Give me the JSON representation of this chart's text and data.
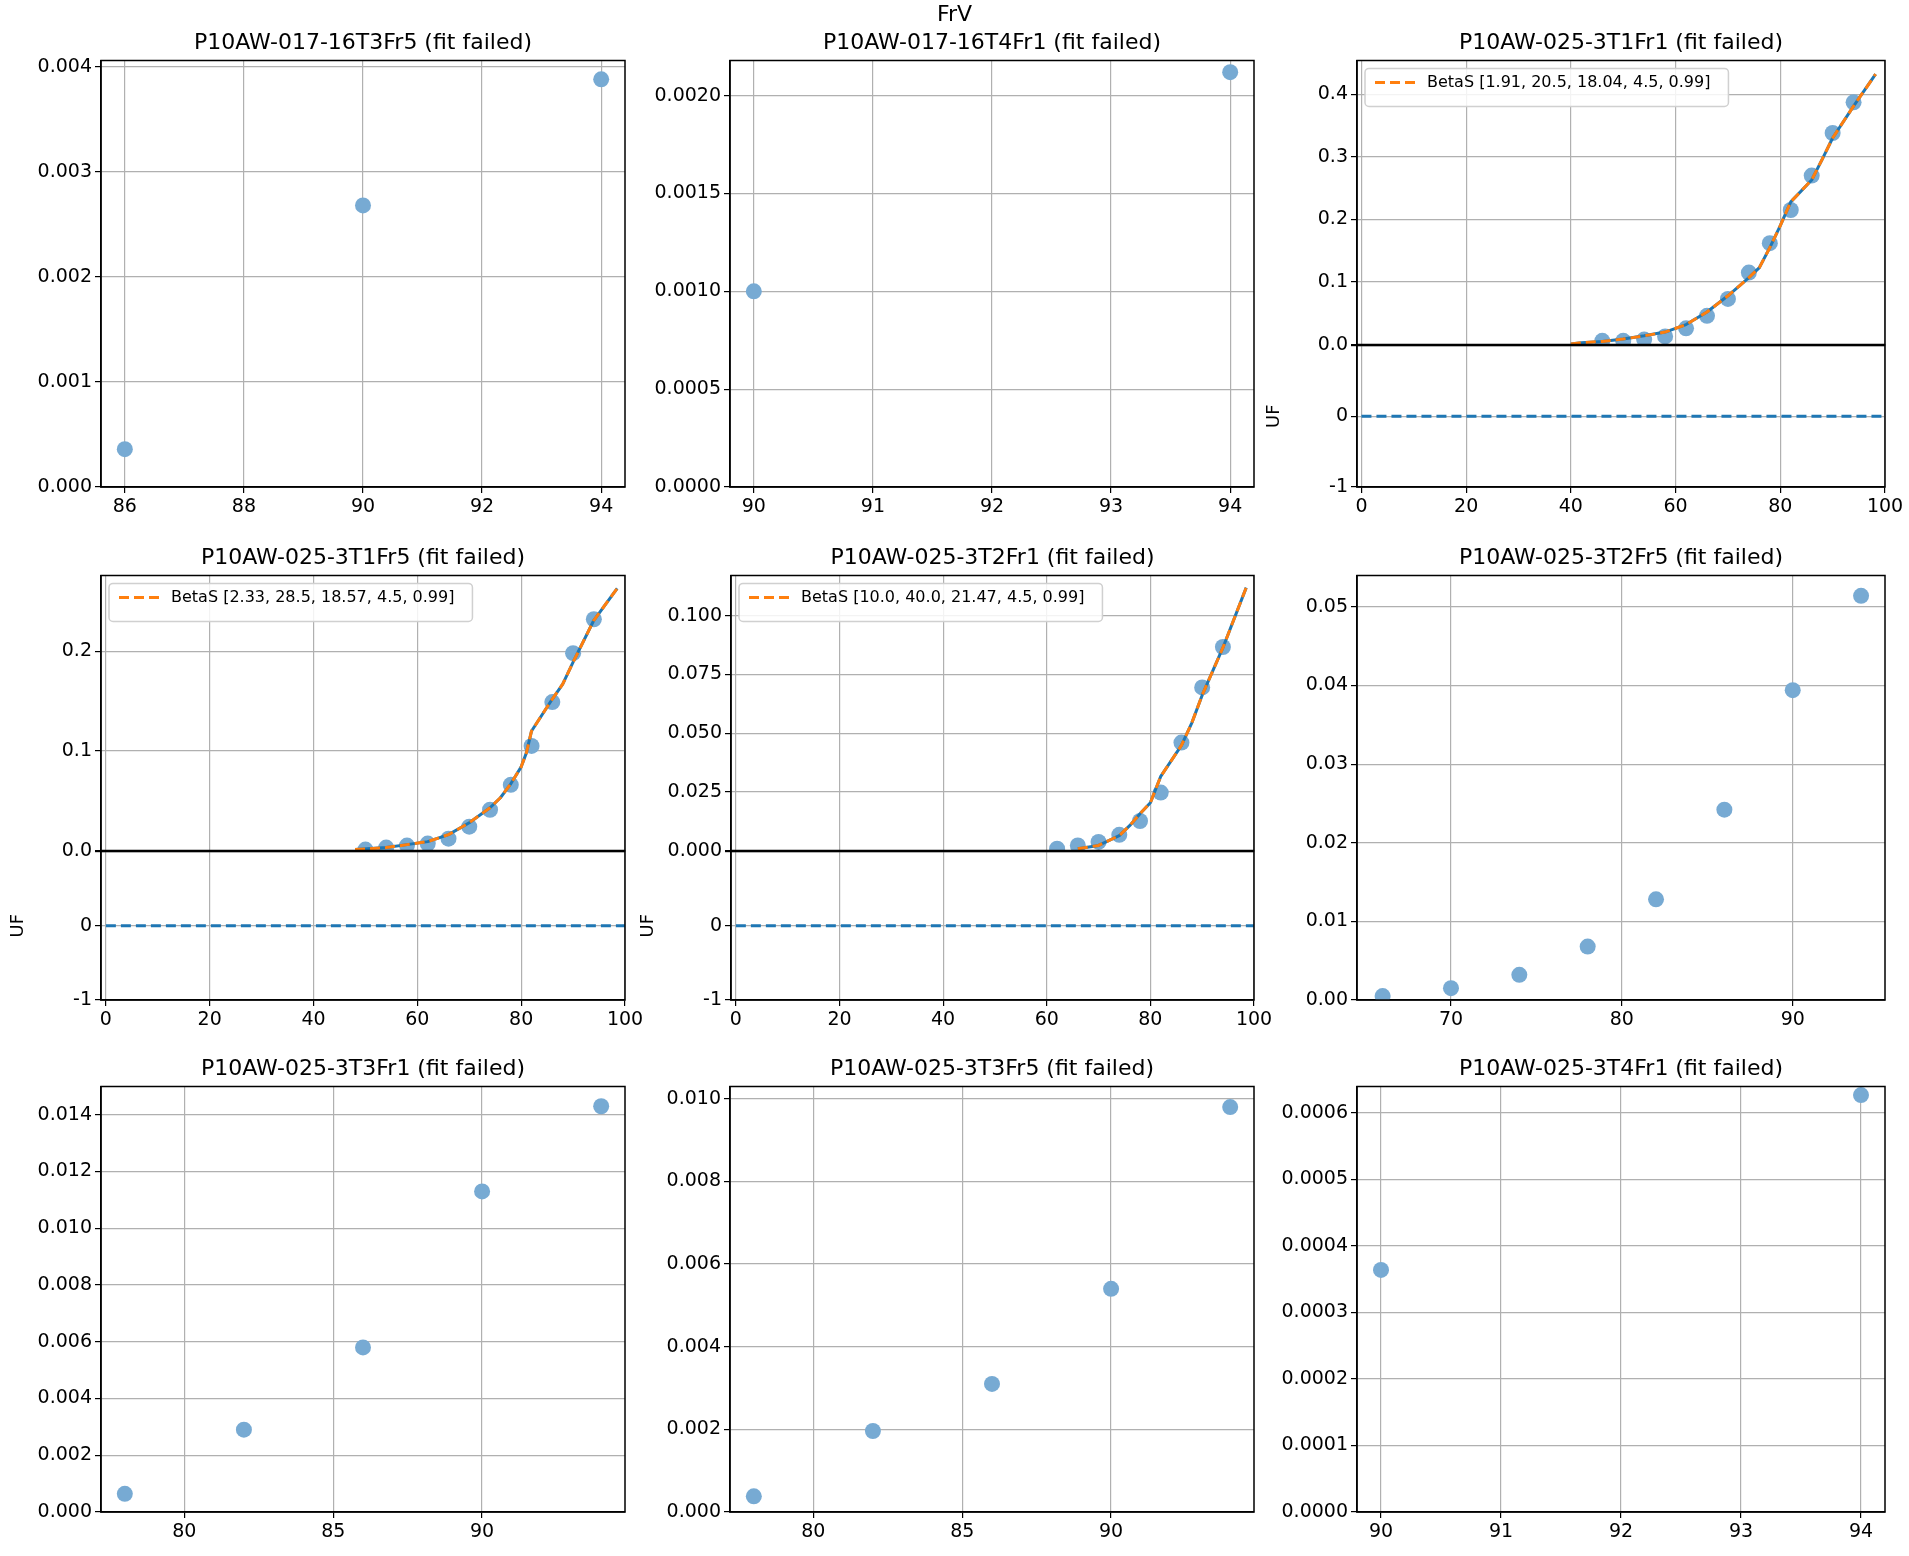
{
  "chart_data": [
    {
      "type": "other",
      "title": "FrV"
    },
    {
      "type": "scatter",
      "title": "P10AW-017-16T3Fr5 (fit failed)",
      "xlim": [
        85.6,
        94.4
      ],
      "xticks": [
        86,
        88,
        90,
        92,
        94
      ],
      "ylim": [
        0,
        0.00406
      ],
      "yticks": [
        {
          "value": 0,
          "label": "0.000"
        },
        0.001,
        0.002,
        0.003,
        0.004
      ],
      "grid": true,
      "series": [
        {
          "type": "scatter",
          "color": "#77aad3",
          "marker": "circle",
          "x": [
            86,
            90,
            94
          ],
          "values": [
            0.00036,
            0.00268,
            0.00388
          ]
        }
      ]
    },
    {
      "type": "scatter",
      "title": "P10AW-017-16T4Fr1 (fit failed)",
      "xlim": [
        89.8,
        94.2
      ],
      "xticks": [
        90,
        91,
        92,
        93,
        94
      ],
      "ylim": [
        0,
        0.00218
      ],
      "yticks": [
        {
          "value": 0,
          "label": "0.0000"
        },
        {
          "value": 0.0005,
          "label": "0.0005"
        },
        {
          "value": 0.001,
          "label": "0.0010"
        },
        {
          "value": 0.0015,
          "label": "0.0015"
        },
        {
          "value": 0.002,
          "label": "0.0020"
        }
      ],
      "grid": true,
      "series": [
        {
          "type": "scatter",
          "color": "#77aad3",
          "marker": "circle",
          "x": [
            90,
            94
          ],
          "values": [
            0.001,
            0.00212
          ]
        }
      ]
    },
    {
      "type": "scatter",
      "title": "P10AW-025-3T1Fr1 (fit failed)",
      "xlim": [
        -0.85,
        100
      ],
      "xticks": [
        0,
        20,
        40,
        60,
        80,
        100
      ],
      "ylim": [
        0,
        0.454
      ],
      "yticks": [
        {
          "value": 0,
          "label": "0.0"
        },
        0.1,
        0.2,
        0.3,
        0.4
      ],
      "grid": true,
      "tick_labels": "y",
      "legend": "top left",
      "series": [
        {
          "type": "scatter",
          "color": "#77aad3",
          "marker": "circle",
          "x": [
            46,
            50,
            54,
            58,
            62,
            66,
            70,
            74,
            78,
            82,
            86,
            90,
            94
          ],
          "values": [
            0.006,
            0.006,
            0.008,
            0.013,
            0.026,
            0.046,
            0.073,
            0.115,
            0.162,
            0.215,
            0.27,
            0.338,
            0.387
          ]
        },
        {
          "type": "line",
          "color": "#1f77b4",
          "line_style": "solid",
          "x": [
            40,
            42,
            46,
            50,
            54,
            58,
            62,
            66,
            70,
            74,
            76,
            78,
            80,
            82,
            86,
            88,
            90,
            94,
            98.2
          ],
          "values": [
            0.001,
            0.003,
            0.005,
            0.009,
            0.014,
            0.02,
            0.032,
            0.052,
            0.078,
            0.107,
            0.123,
            0.155,
            0.19,
            0.228,
            0.263,
            0.296,
            0.33,
            0.381,
            0.432
          ]
        },
        {
          "type": "line",
          "name": "BetaS [1.91, 20.5, 18.04, 4.5, 0.99]",
          "color": "#ff7f0e",
          "line_style": "dashed",
          "x": [
            40,
            42,
            46,
            50,
            54,
            58,
            62,
            66,
            70,
            74,
            76,
            78,
            80,
            82,
            86,
            88,
            90,
            94,
            98.2
          ],
          "values": [
            0.001,
            0.003,
            0.005,
            0.009,
            0.014,
            0.02,
            0.032,
            0.052,
            0.078,
            0.107,
            0.123,
            0.155,
            0.19,
            0.228,
            0.263,
            0.296,
            0.33,
            0.381,
            0.432
          ]
        }
      ]
    },
    {
      "type": "line",
      "xlim": [
        -0.85,
        100
      ],
      "xticks": [
        0,
        20,
        40,
        60,
        80,
        100
      ],
      "ylim": [
        -1,
        1
      ],
      "yticks": [
        -1,
        0,
        {
          "value": 1,
          "label": null
        }
      ],
      "ylabel": "UF",
      "grid": true,
      "series": [
        {
          "type": "line",
          "color": "#1f77b4",
          "line_style": "dashed",
          "x": [
            0,
            100
          ],
          "values": [
            0,
            0
          ]
        }
      ]
    },
    {
      "type": "scatter",
      "title": "P10AW-025-3T1Fr5 (fit failed)",
      "xlim": [
        -0.94,
        100
      ],
      "xticks": [
        0,
        20,
        40,
        60,
        80,
        100
      ],
      "ylim": [
        0,
        0.276
      ],
      "yticks": [
        {
          "value": 0,
          "label": "0.0"
        },
        0.1,
        0.2
      ],
      "grid": true,
      "tick_labels": "y",
      "legend": "top left",
      "series": [
        {
          "type": "scatter",
          "color": "#77aad3",
          "marker": "circle",
          "x": [
            50,
            54,
            58,
            62,
            66,
            70,
            74,
            78,
            82,
            86,
            90,
            94
          ],
          "values": [
            0.001,
            0.003,
            0.005,
            0.007,
            0.012,
            0.024,
            0.041,
            0.066,
            0.105,
            0.149,
            0.198,
            0.232
          ]
        },
        {
          "type": "line",
          "color": "#1f77b4",
          "line_style": "solid",
          "x": [
            48,
            54,
            58,
            62,
            66,
            70,
            74,
            76,
            78,
            80,
            81,
            82,
            86,
            88,
            90,
            94,
            98.5
          ],
          "values": [
            0.001,
            0.003,
            0.006,
            0.009,
            0.016,
            0.028,
            0.043,
            0.053,
            0.067,
            0.084,
            0.098,
            0.12,
            0.152,
            0.167,
            0.189,
            0.231,
            0.263
          ]
        },
        {
          "type": "line",
          "name": "BetaS [2.33, 28.5, 18.57, 4.5, 0.99]",
          "color": "#ff7f0e",
          "line_style": "dashed",
          "x": [
            48,
            54,
            58,
            62,
            66,
            70,
            74,
            76,
            78,
            80,
            81,
            82,
            86,
            88,
            90,
            94,
            98.5
          ],
          "values": [
            0.001,
            0.003,
            0.006,
            0.009,
            0.016,
            0.028,
            0.043,
            0.053,
            0.067,
            0.084,
            0.098,
            0.12,
            0.152,
            0.167,
            0.189,
            0.231,
            0.263
          ]
        }
      ]
    },
    {
      "type": "line",
      "xlim": [
        -0.94,
        100
      ],
      "xticks": [
        0,
        20,
        40,
        60,
        80,
        100
      ],
      "ylim": [
        -1,
        1
      ],
      "yticks": [
        -1,
        0,
        {
          "value": 1,
          "label": null
        }
      ],
      "ylabel": "UF",
      "grid": true,
      "series": [
        {
          "type": "line",
          "color": "#1f77b4",
          "line_style": "dashed",
          "x": [
            0,
            100
          ],
          "values": [
            0,
            0
          ]
        }
      ]
    },
    {
      "type": "scatter",
      "title": "P10AW-025-3T2Fr1 (fit failed)",
      "xlim": [
        -0.94,
        100
      ],
      "xticks": [
        0,
        20,
        40,
        60,
        80,
        100
      ],
      "ylim": [
        0,
        0.1172
      ],
      "yticks": [
        {
          "value": 0,
          "label": "0.000"
        },
        {
          "value": 0.025,
          "label": "0.025"
        },
        {
          "value": 0.05,
          "label": "0.050"
        },
        {
          "value": 0.075,
          "label": "0.075"
        },
        {
          "value": 0.1,
          "label": "0.100"
        }
      ],
      "grid": true,
      "tick_labels": "y",
      "legend": "top left",
      "series": [
        {
          "type": "scatter",
          "color": "#77aad3",
          "marker": "circle",
          "x": [
            62,
            66,
            70,
            74,
            78,
            82,
            86,
            90,
            94
          ],
          "values": [
            0.0008,
            0.0022,
            0.0037,
            0.0067,
            0.0126,
            0.0247,
            0.046,
            0.0695,
            0.0867
          ]
        },
        {
          "type": "line",
          "color": "#1f77b4",
          "line_style": "solid",
          "x": [
            66,
            70,
            74,
            76,
            78,
            80,
            82,
            86,
            88,
            90,
            94,
            98.5
          ],
          "values": [
            0.0008,
            0.0022,
            0.0064,
            0.0106,
            0.0157,
            0.0204,
            0.0316,
            0.0448,
            0.0544,
            0.0662,
            0.0864,
            0.112
          ]
        },
        {
          "type": "line",
          "name": "BetaS [10.0, 40.0, 21.47, 4.5, 0.99]",
          "color": "#ff7f0e",
          "line_style": "dashed",
          "x": [
            66,
            70,
            74,
            76,
            78,
            80,
            82,
            86,
            88,
            90,
            94,
            98.5
          ],
          "values": [
            0.0008,
            0.0022,
            0.0064,
            0.0106,
            0.0157,
            0.0204,
            0.0316,
            0.0448,
            0.0544,
            0.0662,
            0.0864,
            0.112
          ]
        }
      ]
    },
    {
      "type": "line",
      "xlim": [
        -0.94,
        100
      ],
      "xticks": [
        0,
        20,
        40,
        60,
        80,
        100
      ],
      "ylim": [
        -1,
        1
      ],
      "yticks": [
        -1,
        0,
        {
          "value": 1,
          "label": null
        }
      ],
      "ylabel": "UF",
      "grid": true,
      "series": [
        {
          "type": "line",
          "color": "#1f77b4",
          "line_style": "dashed",
          "x": [
            0,
            100
          ],
          "values": [
            0,
            0
          ]
        }
      ]
    },
    {
      "type": "scatter",
      "title": "P10AW-025-3T2Fr5 (fit failed)",
      "xlim": [
        64.5,
        95.4
      ],
      "xticks": [
        70,
        80,
        90
      ],
      "ylim": [
        0,
        0.054
      ],
      "yticks": [
        {
          "value": 0,
          "label": "0.00"
        },
        0.01,
        0.02,
        0.03,
        0.04,
        0.05
      ],
      "grid": true,
      "series": [
        {
          "type": "scatter",
          "color": "#77aad3",
          "marker": "circle",
          "x": [
            66,
            70,
            74,
            78,
            82,
            86,
            90,
            94
          ],
          "values": [
            0.0005,
            0.0015,
            0.0032,
            0.0068,
            0.0128,
            0.0242,
            0.0394,
            0.0514
          ]
        }
      ]
    },
    {
      "type": "scatter",
      "title": "P10AW-025-3T3Fr1 (fit failed)",
      "xlim": [
        77.2,
        94.8
      ],
      "xticks": [
        80,
        85,
        90
      ],
      "ylim": [
        0,
        0.015
      ],
      "yticks": [
        {
          "value": 0,
          "label": "0.000"
        },
        0.002,
        0.004,
        0.006,
        0.008,
        {
          "value": 0.01,
          "label": "0.010"
        },
        0.012,
        0.014
      ],
      "grid": true,
      "series": [
        {
          "type": "scatter",
          "color": "#77aad3",
          "marker": "circle",
          "x": [
            78,
            82,
            86,
            90,
            94
          ],
          "values": [
            0.00064,
            0.0029,
            0.0058,
            0.0113,
            0.0143
          ]
        }
      ]
    },
    {
      "type": "scatter",
      "title": "P10AW-025-3T3Fr5 (fit failed)",
      "xlim": [
        77.2,
        94.8
      ],
      "xticks": [
        80,
        85,
        90
      ],
      "ylim": [
        0,
        0.0103
      ],
      "yticks": [
        {
          "value": 0,
          "label": "0.000"
        },
        0.002,
        0.004,
        0.006,
        0.008,
        {
          "value": 0.01,
          "label": "0.010"
        }
      ],
      "grid": true,
      "series": [
        {
          "type": "scatter",
          "color": "#77aad3",
          "marker": "circle",
          "x": [
            78,
            82,
            86,
            90,
            94
          ],
          "values": [
            0.00038,
            0.00196,
            0.0031,
            0.0054,
            0.0098
          ]
        }
      ]
    },
    {
      "type": "scatter",
      "title": "P10AW-025-3T4Fr1 (fit failed)",
      "xlim": [
        89.8,
        94.2
      ],
      "xticks": [
        90,
        91,
        92,
        93,
        94
      ],
      "ylim": [
        0,
        0.00064
      ],
      "yticks": [
        {
          "value": 0,
          "label": "0.0000"
        },
        0.0001,
        0.0002,
        0.0003,
        0.0004,
        0.0005,
        0.0006
      ],
      "grid": true,
      "series": [
        {
          "type": "scatter",
          "color": "#77aad3",
          "marker": "circle",
          "x": [
            90,
            94
          ],
          "values": [
            0.000364,
            0.000627
          ]
        }
      ]
    }
  ]
}
